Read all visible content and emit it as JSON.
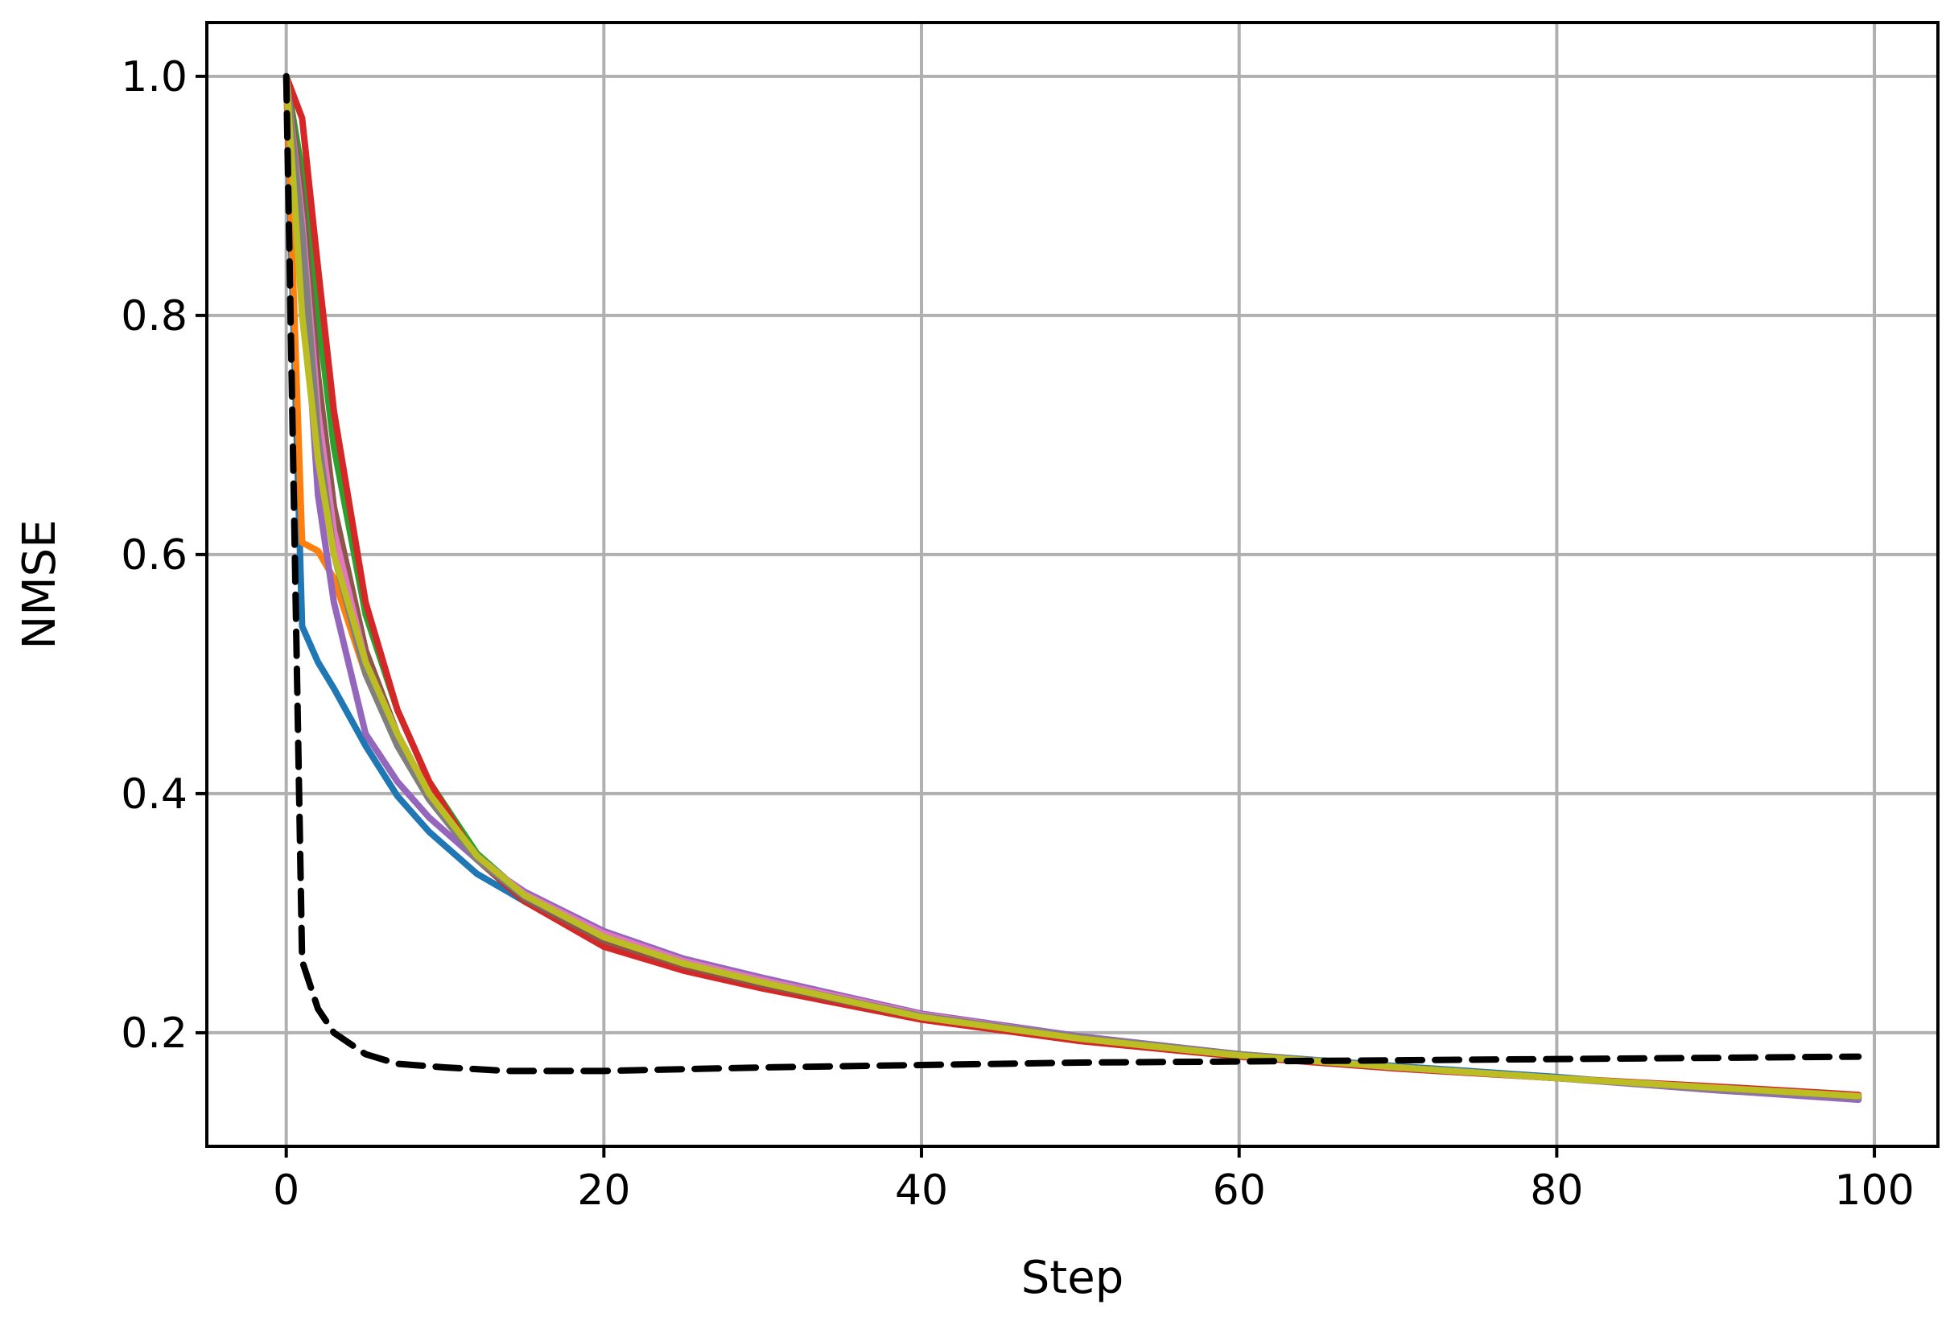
{
  "chart_data": {
    "type": "line",
    "title": "",
    "xlabel": "Step",
    "ylabel": "NMSE",
    "xlim": [
      -5,
      104
    ],
    "ylim": [
      0.105,
      1.045
    ],
    "grid": true,
    "legend": "none",
    "x_ticks": [
      0,
      20,
      40,
      60,
      80,
      100
    ],
    "x_tick_labels": [
      "0",
      "20",
      "40",
      "60",
      "80",
      "100"
    ],
    "y_ticks": [
      0.2,
      0.4,
      0.6,
      0.8,
      1.0
    ],
    "y_tick_labels": [
      "0.2",
      "0.4",
      "0.6",
      "0.8",
      "1.0"
    ],
    "series": [
      {
        "color": "#1f77b4",
        "style": "solid",
        "x": [
          0,
          1,
          2,
          3,
          5,
          7,
          9,
          12,
          15,
          20,
          25,
          30,
          40,
          50,
          60,
          70,
          80,
          90,
          99
        ],
        "y": [
          1.0,
          0.54,
          0.51,
          0.488,
          0.44,
          0.398,
          0.368,
          0.333,
          0.31,
          0.28,
          0.259,
          0.243,
          0.215,
          0.196,
          0.182,
          0.172,
          0.163,
          0.152,
          0.145
        ]
      },
      {
        "color": "#ff7f0e",
        "style": "solid",
        "x": [
          0,
          1,
          2,
          3,
          5,
          7,
          9,
          12,
          15,
          20,
          25,
          30,
          40,
          50,
          60,
          70,
          80,
          90,
          99
        ],
        "y": [
          1.0,
          0.61,
          0.603,
          0.58,
          0.5,
          0.44,
          0.395,
          0.345,
          0.315,
          0.28,
          0.259,
          0.243,
          0.214,
          0.196,
          0.182,
          0.171,
          0.162,
          0.153,
          0.146
        ]
      },
      {
        "color": "#2ca02c",
        "style": "solid",
        "x": [
          0,
          1,
          2,
          3,
          5,
          7,
          9,
          12,
          15,
          20,
          25,
          30,
          40,
          50,
          60,
          70,
          80,
          90,
          99
        ],
        "y": [
          1.0,
          0.92,
          0.8,
          0.69,
          0.55,
          0.47,
          0.41,
          0.35,
          0.315,
          0.278,
          0.257,
          0.241,
          0.213,
          0.195,
          0.181,
          0.171,
          0.162,
          0.154,
          0.147
        ]
      },
      {
        "color": "#d62728",
        "style": "solid",
        "x": [
          0,
          1,
          2,
          3,
          5,
          7,
          9,
          12,
          15,
          20,
          25,
          30,
          40,
          50,
          60,
          70,
          80,
          90,
          99
        ],
        "y": [
          1.0,
          0.965,
          0.84,
          0.72,
          0.56,
          0.47,
          0.41,
          0.345,
          0.31,
          0.272,
          0.252,
          0.237,
          0.211,
          0.193,
          0.18,
          0.17,
          0.162,
          0.155,
          0.148
        ]
      },
      {
        "color": "#9467bd",
        "style": "solid",
        "x": [
          0,
          1,
          2,
          3,
          5,
          7,
          9,
          12,
          15,
          20,
          25,
          30,
          40,
          50,
          60,
          70,
          80,
          90,
          99
        ],
        "y": [
          1.0,
          0.85,
          0.65,
          0.56,
          0.45,
          0.41,
          0.38,
          0.345,
          0.318,
          0.285,
          0.262,
          0.246,
          0.216,
          0.197,
          0.182,
          0.171,
          0.162,
          0.152,
          0.144
        ]
      },
      {
        "color": "#8c564b",
        "style": "solid",
        "x": [
          0,
          1,
          2,
          3,
          5,
          7,
          9,
          12,
          15,
          20,
          25,
          30,
          40,
          50,
          60,
          70,
          80,
          90,
          99
        ],
        "y": [
          1.0,
          0.9,
          0.75,
          0.64,
          0.52,
          0.45,
          0.4,
          0.345,
          0.312,
          0.277,
          0.256,
          0.24,
          0.213,
          0.195,
          0.181,
          0.171,
          0.162,
          0.154,
          0.147
        ]
      },
      {
        "color": "#e377c2",
        "style": "solid",
        "x": [
          0,
          1,
          2,
          3,
          5,
          7,
          9,
          12,
          15,
          20,
          25,
          30,
          40,
          50,
          60,
          70,
          80,
          90,
          99
        ],
        "y": [
          1.0,
          0.88,
          0.72,
          0.62,
          0.51,
          0.45,
          0.4,
          0.348,
          0.316,
          0.283,
          0.26,
          0.244,
          0.215,
          0.196,
          0.182,
          0.171,
          0.162,
          0.153,
          0.146
        ]
      },
      {
        "color": "#7f7f7f",
        "style": "solid",
        "x": [
          0,
          1,
          2,
          3,
          5,
          7,
          9,
          12,
          15,
          20,
          25,
          30,
          40,
          50,
          60,
          70,
          80,
          90,
          99
        ],
        "y": [
          1.0,
          0.87,
          0.7,
          0.6,
          0.5,
          0.44,
          0.395,
          0.345,
          0.314,
          0.28,
          0.258,
          0.242,
          0.214,
          0.196,
          0.182,
          0.171,
          0.162,
          0.153,
          0.146
        ]
      },
      {
        "color": "#bcbd22",
        "style": "solid",
        "x": [
          0,
          1,
          2,
          3,
          5,
          7,
          9,
          12,
          15,
          20,
          25,
          30,
          40,
          50,
          60,
          70,
          80,
          90,
          99
        ],
        "y": [
          1.0,
          0.8,
          0.68,
          0.6,
          0.51,
          0.45,
          0.4,
          0.348,
          0.315,
          0.28,
          0.258,
          0.242,
          0.213,
          0.195,
          0.181,
          0.171,
          0.162,
          0.154,
          0.147
        ]
      },
      {
        "color": "#000000",
        "style": "dashed",
        "x": [
          0,
          1,
          2,
          3,
          5,
          7,
          10,
          14,
          20,
          30,
          40,
          50,
          60,
          70,
          80,
          90,
          99
        ],
        "y": [
          1.0,
          0.26,
          0.22,
          0.2,
          0.182,
          0.174,
          0.171,
          0.168,
          0.168,
          0.171,
          0.173,
          0.175,
          0.176,
          0.177,
          0.178,
          0.179,
          0.18
        ]
      }
    ]
  }
}
